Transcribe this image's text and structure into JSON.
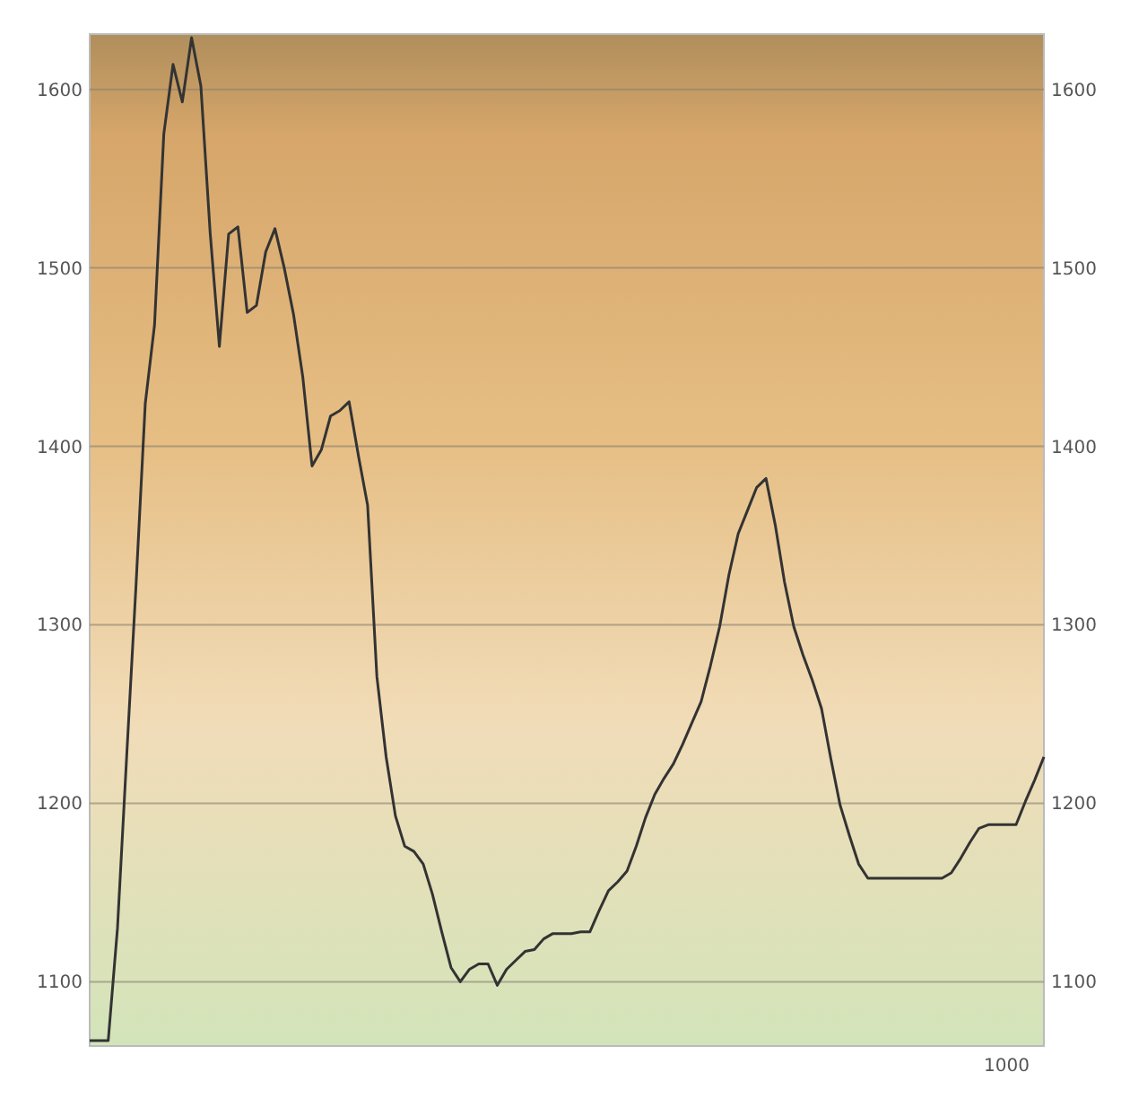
{
  "chart_data": {
    "type": "line",
    "categories": [
      null,
      null,
      null,
      null,
      null,
      null,
      null,
      null,
      null,
      null,
      null,
      null,
      null,
      null,
      null,
      null,
      null,
      null,
      null,
      null,
      null,
      null,
      null,
      null,
      null,
      null,
      null,
      null,
      null,
      null,
      null,
      null,
      null,
      null,
      null,
      null,
      null,
      null,
      null,
      null,
      null,
      null,
      null,
      null,
      null,
      null,
      null,
      null,
      null,
      null,
      null,
      null,
      null,
      null,
      null,
      null,
      null,
      null,
      null,
      null,
      null,
      null,
      null,
      null,
      null,
      null,
      null,
      null,
      null,
      null,
      null,
      null,
      null,
      null,
      null,
      null,
      null,
      null,
      null,
      null,
      null,
      null,
      null,
      null,
      null,
      null,
      null,
      null,
      null,
      null,
      null,
      null,
      null,
      null,
      null,
      null,
      null,
      null,
      null,
      null,
      null,
      null,
      null,
      null
    ],
    "series": [
      {
        "color": "#333333",
        "values": [
          1067,
          1067,
          1067,
          1130,
          1227,
          1322,
          1424,
          1468,
          1575,
          1614,
          1593,
          1629,
          1602,
          1520,
          1456,
          1519,
          1523,
          1475,
          1479,
          1509,
          1522,
          1500,
          1474,
          1439,
          1389,
          1398,
          1417,
          1420,
          1425,
          1395,
          1367,
          1271,
          1226,
          1193,
          1176,
          1173,
          1166,
          1149,
          1128,
          1108,
          1100,
          1107,
          1110,
          1110,
          1098,
          1107,
          1112,
          1117,
          1118,
          1124,
          1127,
          1127,
          1127,
          1128,
          1128,
          1140,
          1151,
          1156,
          1162,
          1176,
          1192,
          1205,
          1214,
          1222,
          1233,
          1245,
          1257,
          1277,
          1299,
          1328,
          1351,
          1364,
          1377,
          1382,
          1356,
          1324,
          1299,
          1283,
          1269,
          1253,
          1225,
          1199,
          1182,
          1166,
          1158,
          1158,
          1158,
          1158,
          1158,
          1158,
          1158,
          1158,
          1158,
          1161,
          1169,
          1178,
          1186,
          1188,
          1188,
          1188,
          1188,
          1201,
          1213,
          1226
        ]
      }
    ],
    "ylim": [
      1064,
      1631
    ],
    "yticks": [
      1100,
      1200,
      1300,
      1400,
      1500,
      1600
    ],
    "y2lim": [
      1064,
      1631
    ],
    "y2ticks": [
      1100,
      1200,
      1300,
      1400,
      1500,
      1600
    ],
    "grid": "y",
    "line_style": "solid",
    "marker": "none",
    "annotations": [
      "1000"
    ]
  }
}
